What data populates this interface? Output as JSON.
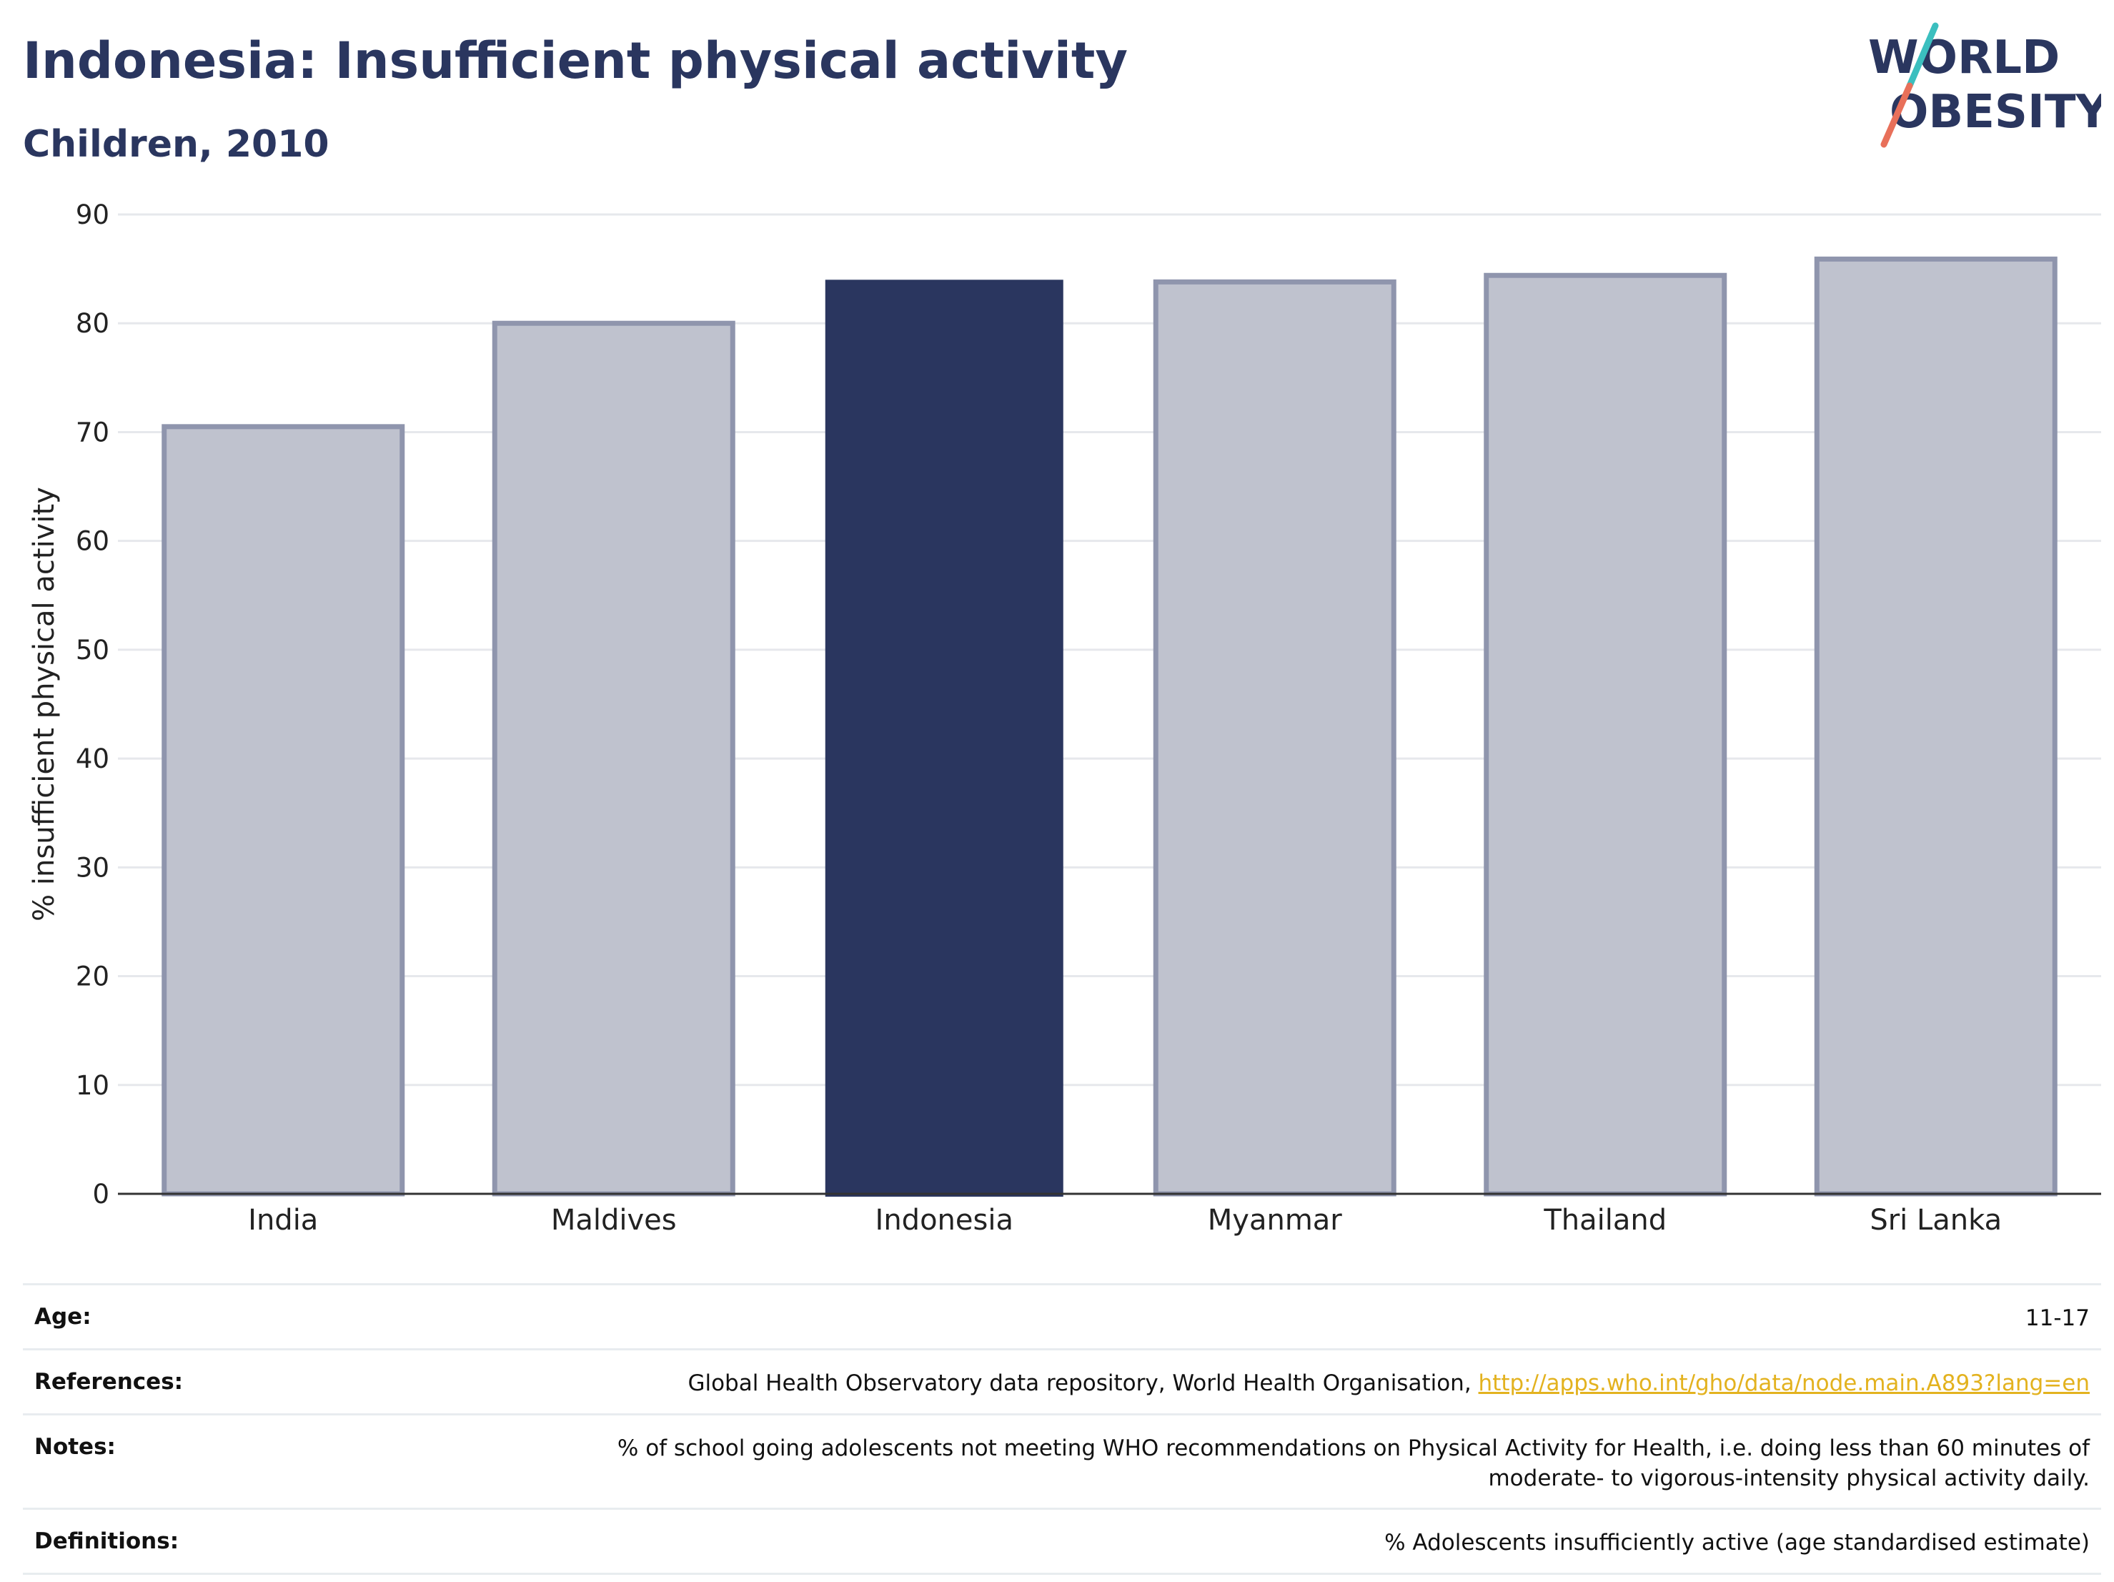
{
  "header": {
    "title": "Indonesia: Insufficient physical activity",
    "subtitle": "Children, 2010"
  },
  "logo": {
    "line1": "WORLD",
    "line2": "OBESITY",
    "colors": {
      "text": "#2a365f",
      "slash_teal": "#3bbfbf",
      "slash_coral": "#e8705a"
    }
  },
  "chart_data": {
    "type": "bar",
    "title": "Indonesia: Insufficient physical activity",
    "subtitle": "Children, 2010",
    "categories": [
      "India",
      "Maldives",
      "Indonesia",
      "Myanmar",
      "Thailand",
      "Sri Lanka"
    ],
    "values": [
      70.5,
      80.0,
      84.0,
      83.8,
      84.4,
      85.9
    ],
    "highlight": "Indonesia",
    "ylabel": "% insufficient physical activity",
    "xlabel": "",
    "ylim": [
      0,
      90
    ],
    "yticks": [
      0,
      10,
      20,
      30,
      40,
      50,
      60,
      70,
      80,
      90
    ],
    "grid": true,
    "colors": {
      "bar": "#bfc2ce",
      "bar_edge": "#8f95ad",
      "highlight": "#2a365f"
    }
  },
  "info": {
    "rows": [
      {
        "label": "Age:",
        "value": "11-17"
      },
      {
        "label": "References:",
        "value": "Global Health Observatory data repository, World Health Organisation, ",
        "link": "http://apps.who.int/gho/data/node.main.A893?lang=en"
      },
      {
        "label": "Notes:",
        "value": "% of school going adolescents not meeting WHO recommendations on Physical Activity for Health, i.e. doing less than 60 minutes of moderate- to vigorous-intensity physical activity daily."
      },
      {
        "label": "Definitions:",
        "value": "% Adolescents insufficiently active (age standardised estimate)"
      }
    ]
  }
}
